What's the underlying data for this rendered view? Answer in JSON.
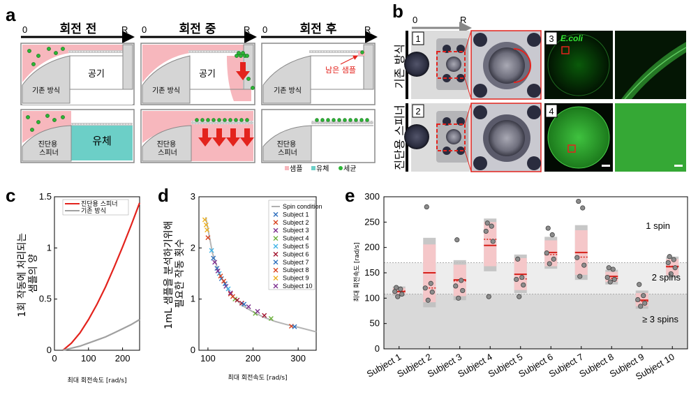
{
  "panel_a": {
    "label": "a",
    "axis_start": "0",
    "axis_end": "R",
    "titles": [
      "회전 전",
      "회전 중",
      "회전 후"
    ],
    "conventional_label": "기존 방식",
    "spinner_label": "진단용\n스피너",
    "air_label": "공기",
    "fluid_label": "유체",
    "remaining_sample_label": "남은 샘플",
    "legend": [
      {
        "label": "샘플",
        "color": "#f7b7bd"
      },
      {
        "label": "유체",
        "color": "#6ccfc7"
      },
      {
        "label": "세균",
        "color": "#2bb535"
      }
    ]
  },
  "panel_b": {
    "label": "b",
    "axis_start": "0",
    "axis_end": "R",
    "row1_label": "기존 방식",
    "row2_label": "진단용 스피너",
    "num1": "1",
    "num2": "2",
    "num3": "3",
    "num4": "4",
    "ecoli": "E.coli"
  },
  "panel_c": {
    "label": "c",
    "legend_red": "진단용 스피너",
    "legend_gray": "기존 방식",
    "ylabel": "1회 작동에 처리되는\n샘플의 양",
    "xlabel": "최대 회전속도 [rad/s]",
    "colors": {
      "red": "#e3231d",
      "gray": "#a0a0a0"
    },
    "chart_data": {
      "type": "line",
      "xlim": [
        0,
        250
      ],
      "ylim": [
        0,
        1.5
      ],
      "xticks": [
        "0",
        "100",
        "200"
      ],
      "yticks": [
        "0",
        "0.5",
        "1",
        "1.5"
      ],
      "series": [
        {
          "name": "진단용 스피너",
          "x": [
            25,
            50,
            75,
            100,
            125,
            150,
            175,
            200,
            225,
            250
          ],
          "y": [
            0,
            0.07,
            0.17,
            0.3,
            0.45,
            0.62,
            0.81,
            1.01,
            1.22,
            1.44
          ]
        },
        {
          "name": "기존 방식",
          "x": [
            25,
            50,
            75,
            100,
            125,
            150,
            175,
            200,
            225,
            250
          ],
          "y": [
            0,
            0.02,
            0.04,
            0.07,
            0.1,
            0.13,
            0.17,
            0.21,
            0.25,
            0.3
          ]
        }
      ]
    }
  },
  "panel_d": {
    "label": "d",
    "ylabel": "1mL 샘플을 분석하기위해\n필요한 작동 횟수",
    "xlabel": "최대 회전속도 [rad/s]",
    "legend": [
      {
        "label": "Spin condition",
        "color": "#b0b0b0"
      },
      {
        "label": "Subject 1",
        "color": "#2e6fbd"
      },
      {
        "label": "Subject 2",
        "color": "#d9411e"
      },
      {
        "label": "Subject 3",
        "color": "#7e2f8e"
      },
      {
        "label": "Subject 4",
        "color": "#6bb03a"
      },
      {
        "label": "Subject 5",
        "color": "#3fb3e6"
      },
      {
        "label": "Subject 6",
        "color": "#a2142f"
      },
      {
        "label": "Subject 7",
        "color": "#2e6fbd"
      },
      {
        "label": "Subject 8",
        "color": "#d9411e"
      },
      {
        "label": "Subject 9",
        "color": "#edb120"
      },
      {
        "label": "Subject 10",
        "color": "#7e2f8e"
      }
    ],
    "chart_data": {
      "type": "scatter",
      "xlim": [
        80,
        340
      ],
      "ylim": [
        0,
        3
      ],
      "xticks": [
        "100",
        "200",
        "300"
      ],
      "yticks": [
        "0",
        "1",
        "2",
        "3"
      ],
      "curve": {
        "name": "Spin condition",
        "x": [
          95,
          110,
          125,
          150,
          175,
          200,
          225,
          250,
          275,
          300,
          340
        ],
        "y": [
          2.6,
          1.9,
          1.5,
          1.1,
          0.88,
          0.75,
          0.64,
          0.56,
          0.5,
          0.45,
          0.36
        ]
      },
      "points": [
        {
          "s": 1,
          "x": 112,
          "y": 1.8
        },
        {
          "s": 1,
          "x": 120,
          "y": 1.6
        },
        {
          "s": 1,
          "x": 130,
          "y": 1.4
        },
        {
          "s": 2,
          "x": 100,
          "y": 2.2
        },
        {
          "s": 2,
          "x": 150,
          "y": 1.1
        },
        {
          "s": 2,
          "x": 285,
          "y": 0.47
        },
        {
          "s": 3,
          "x": 115,
          "y": 1.72
        },
        {
          "s": 3,
          "x": 140,
          "y": 1.25
        },
        {
          "s": 3,
          "x": 190,
          "y": 0.85
        },
        {
          "s": 4,
          "x": 160,
          "y": 1.0
        },
        {
          "s": 4,
          "x": 205,
          "y": 0.72
        },
        {
          "s": 4,
          "x": 240,
          "y": 0.62
        },
        {
          "s": 5,
          "x": 108,
          "y": 1.95
        },
        {
          "s": 5,
          "x": 125,
          "y": 1.5
        },
        {
          "s": 5,
          "x": 145,
          "y": 1.2
        },
        {
          "s": 6,
          "x": 165,
          "y": 0.98
        },
        {
          "s": 6,
          "x": 175,
          "y": 0.92
        },
        {
          "s": 6,
          "x": 225,
          "y": 0.68
        },
        {
          "s": 7,
          "x": 138,
          "y": 1.3
        },
        {
          "s": 7,
          "x": 180,
          "y": 0.9
        },
        {
          "s": 7,
          "x": 292,
          "y": 0.46
        },
        {
          "s": 8,
          "x": 128,
          "y": 1.45
        },
        {
          "s": 8,
          "x": 135,
          "y": 1.35
        },
        {
          "s": 8,
          "x": 155,
          "y": 1.05
        },
        {
          "s": 9,
          "x": 93,
          "y": 2.55
        },
        {
          "s": 9,
          "x": 96,
          "y": 2.45
        },
        {
          "s": 9,
          "x": 98,
          "y": 2.35
        },
        {
          "s": 10,
          "x": 122,
          "y": 1.55
        },
        {
          "s": 10,
          "x": 150,
          "y": 1.12
        },
        {
          "s": 10,
          "x": 210,
          "y": 0.76
        }
      ]
    }
  },
  "panel_e": {
    "label": "e",
    "ylabel": "최대 회전속도 [rad/s]",
    "regions": {
      "one": "1 spin",
      "two": "2 spins",
      "three": "≥ 3 spins"
    },
    "chart_data": {
      "type": "box",
      "ylim": [
        0,
        300
      ],
      "yticks": [
        "0",
        "50",
        "100",
        "150",
        "200",
        "250",
        "300"
      ],
      "thresholds": [
        108,
        170
      ],
      "categories": [
        "Subject 1",
        "Subject 2",
        "Subject 3",
        "Subject 4",
        "Subject 5",
        "Subject 6",
        "Subject 7",
        "Subject 8",
        "Subject 9",
        "Subject 10"
      ],
      "boxes": [
        {
          "outer": [
            105,
            123
          ],
          "inner": [
            108,
            120
          ],
          "median": 113,
          "mean": 114,
          "pts": [
            103,
            108,
            113,
            118,
            121
          ]
        },
        {
          "outer": [
            82,
            219
          ],
          "inner": [
            92,
            206
          ],
          "median": 150,
          "mean": 120,
          "pts": [
            96,
            112,
            120,
            129,
            280
          ]
        },
        {
          "outer": [
            96,
            175
          ],
          "inner": [
            104,
            166
          ],
          "median": 136,
          "mean": 134,
          "pts": [
            100,
            115,
            124,
            135,
            215
          ]
        },
        {
          "outer": [
            153,
            257
          ],
          "inner": [
            163,
            250
          ],
          "median": 204,
          "mean": 216,
          "pts": [
            103,
            212,
            232,
            242,
            248
          ]
        },
        {
          "outer": [
            110,
            186
          ],
          "inner": [
            116,
            179
          ],
          "median": 147,
          "mean": 138,
          "pts": [
            103,
            126,
            137,
            141,
            177
          ]
        },
        {
          "outer": [
            158,
            221
          ],
          "inner": [
            163,
            214
          ],
          "median": 190,
          "mean": 186,
          "pts": [
            168,
            177,
            189,
            225,
            238
          ]
        },
        {
          "outer": [
            136,
            244
          ],
          "inner": [
            146,
            234
          ],
          "median": 190,
          "mean": 181,
          "pts": [
            143,
            165,
            180,
            278,
            291
          ]
        },
        {
          "outer": [
            127,
            156
          ],
          "inner": [
            132,
            152
          ],
          "median": 143,
          "mean": 139,
          "pts": [
            132,
            137,
            141,
            157,
            160
          ]
        },
        {
          "outer": [
            79,
            115
          ],
          "inner": [
            84,
            110
          ],
          "median": 96,
          "mean": 94,
          "pts": [
            84,
            90,
            97,
            105,
            127
          ]
        },
        {
          "outer": [
            140,
            182
          ],
          "inner": [
            145,
            177
          ],
          "median": 162,
          "mean": 163,
          "pts": [
            148,
            160,
            170,
            176,
            182
          ]
        }
      ]
    }
  }
}
